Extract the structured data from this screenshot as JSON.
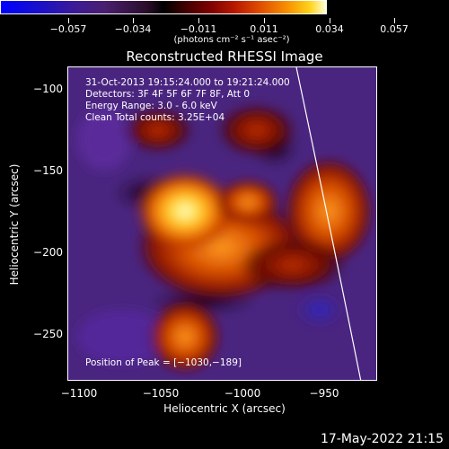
{
  "colorbar": {
    "ticks": [
      "−0.057",
      "−0.034",
      "−0.011",
      "0.011",
      "0.034",
      "0.057"
    ],
    "units": "(photons cm⁻² s⁻¹ asec⁻²)"
  },
  "title": "Reconstructed RHESSI Image",
  "axes": {
    "xlabel": "Heliocentric X (arcsec)",
    "ylabel": "Heliocentric Y (arcsec)",
    "xticks": [
      "−1100",
      "−1050",
      "−1000",
      "−950"
    ],
    "yticks": [
      "−100",
      "−150",
      "−200",
      "−250"
    ]
  },
  "info": {
    "time": "31-Oct-2013 19:15:24.000 to 19:21:24.000",
    "detectors": "Detectors: 3F 4F 5F 6F 7F 8F, Att 0",
    "energy": "Energy Range: 3.0 - 6.0 keV",
    "clean": "Clean    Total counts: 3.25E+04"
  },
  "peak": "Position of Peak = [−1030,−189]",
  "footer_date": "17-May-2022 21:15"
}
